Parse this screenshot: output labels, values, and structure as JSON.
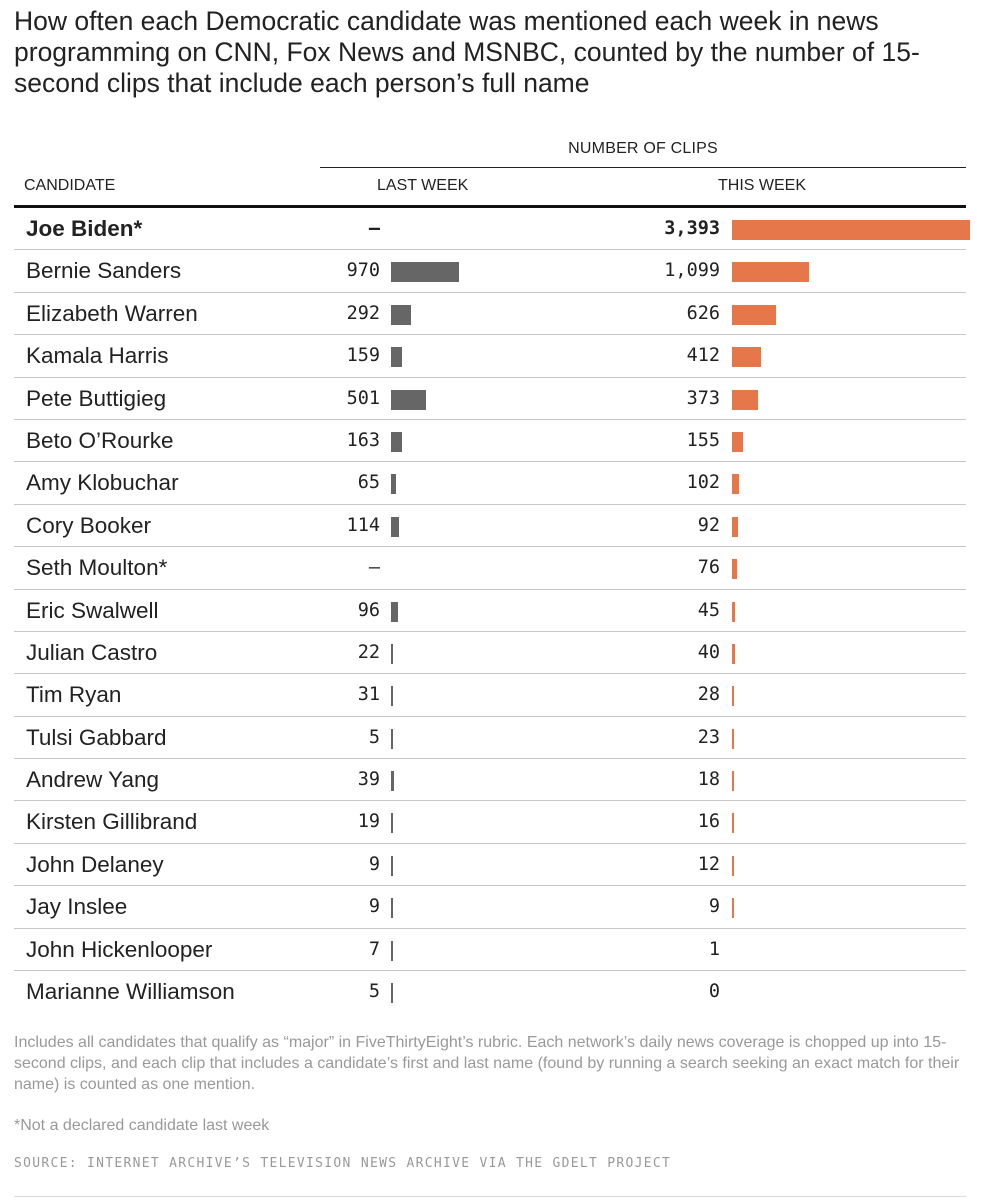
{
  "title": "How often each Democratic candidate was mentioned each week in news programming on CNN, Fox News and MSNBC, counted by the number of 15-second clips that include each person’s full name",
  "colors": {
    "last_week_bar": "#666666",
    "this_week_bar": "#e5774a"
  },
  "chart_data": {
    "type": "table",
    "group_header": "NUMBER OF CLIPS",
    "columns": [
      "CANDIDATE",
      "LAST WEEK",
      "THIS WEEK"
    ],
    "rows": [
      {
        "name": "Joe Biden*",
        "last": null,
        "last_label": "–",
        "this": 3393,
        "this_label": "3,393",
        "bold": true
      },
      {
        "name": "Bernie Sanders",
        "last": 970,
        "last_label": "970",
        "this": 1099,
        "this_label": "1,099"
      },
      {
        "name": "Elizabeth Warren",
        "last": 292,
        "last_label": "292",
        "this": 626,
        "this_label": "626"
      },
      {
        "name": "Kamala Harris",
        "last": 159,
        "last_label": "159",
        "this": 412,
        "this_label": "412"
      },
      {
        "name": "Pete Buttigieg",
        "last": 501,
        "last_label": "501",
        "this": 373,
        "this_label": "373"
      },
      {
        "name": "Beto O’Rourke",
        "last": 163,
        "last_label": "163",
        "this": 155,
        "this_label": "155"
      },
      {
        "name": "Amy Klobuchar",
        "last": 65,
        "last_label": "65",
        "this": 102,
        "this_label": "102"
      },
      {
        "name": "Cory Booker",
        "last": 114,
        "last_label": "114",
        "this": 92,
        "this_label": "92"
      },
      {
        "name": "Seth Moulton*",
        "last": null,
        "last_label": "–",
        "this": 76,
        "this_label": "76"
      },
      {
        "name": "Eric Swalwell",
        "last": 96,
        "last_label": "96",
        "this": 45,
        "this_label": "45"
      },
      {
        "name": "Julian Castro",
        "last": 22,
        "last_label": "22",
        "this": 40,
        "this_label": "40"
      },
      {
        "name": "Tim Ryan",
        "last": 31,
        "last_label": "31",
        "this": 28,
        "this_label": "28"
      },
      {
        "name": "Tulsi Gabbard",
        "last": 5,
        "last_label": "5",
        "this": 23,
        "this_label": "23"
      },
      {
        "name": "Andrew Yang",
        "last": 39,
        "last_label": "39",
        "this": 18,
        "this_label": "18"
      },
      {
        "name": "Kirsten Gillibrand",
        "last": 19,
        "last_label": "19",
        "this": 16,
        "this_label": "16"
      },
      {
        "name": "John Delaney",
        "last": 9,
        "last_label": "9",
        "this": 12,
        "this_label": "12"
      },
      {
        "name": "Jay Inslee",
        "last": 9,
        "last_label": "9",
        "this": 9,
        "this_label": "9"
      },
      {
        "name": "John Hickenlooper",
        "last": 7,
        "last_label": "7",
        "this": 1,
        "this_label": "1"
      },
      {
        "name": "Marianne Williamson",
        "last": 5,
        "last_label": "5",
        "this": 0,
        "this_label": "0"
      }
    ]
  },
  "footnote": "Includes all candidates that qualify as “major” in FiveThirtyEight’s rubric. Each network’s daily news coverage is chopped up into 15-second clips, and each clip that includes a candidate’s first and last name (found by running a search seeking an exact match for their name) is counted as one mention.",
  "note": "*Not a declared candidate last week",
  "source": "SOURCE: INTERNET ARCHIVE’S TELEVISION NEWS ARCHIVE VIA THE GDELT PROJECT"
}
